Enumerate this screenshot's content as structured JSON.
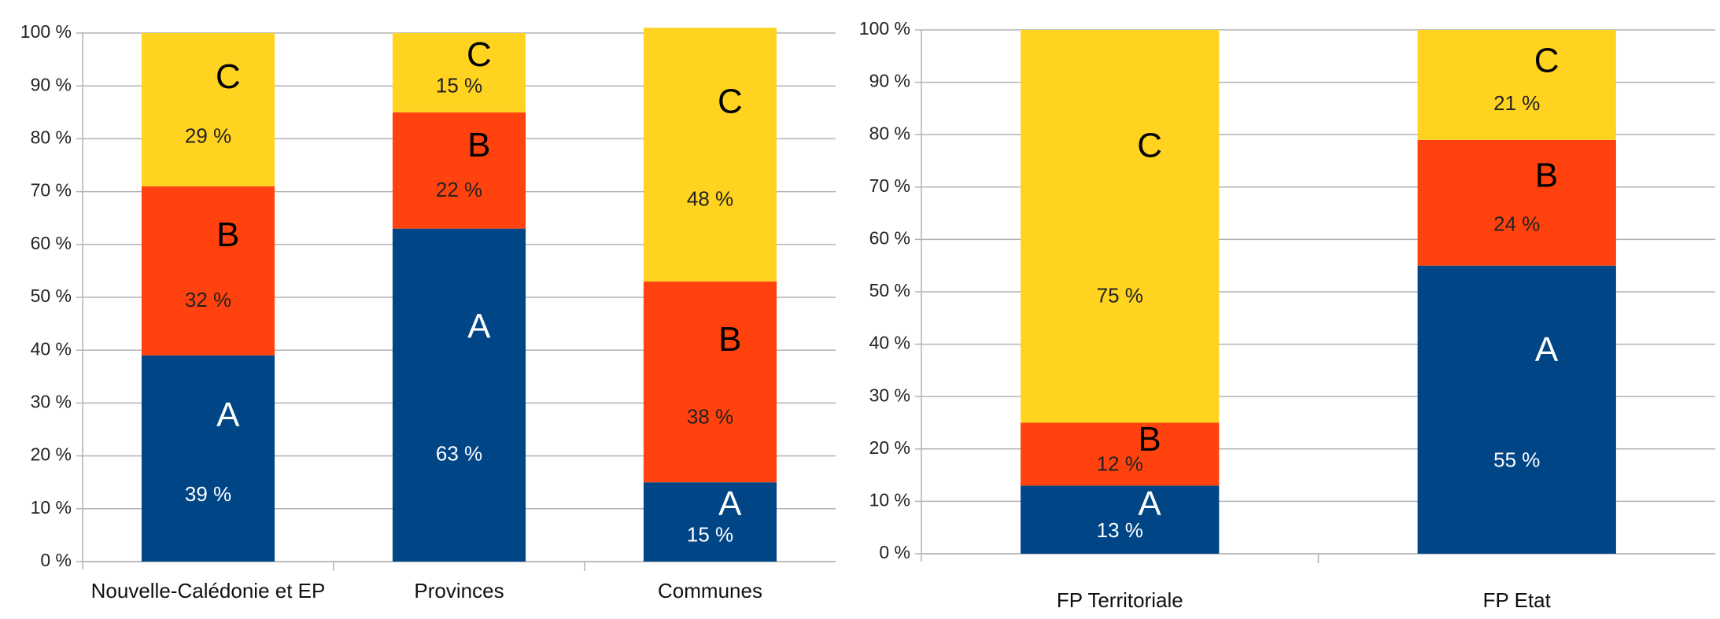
{
  "chart_data": [
    {
      "type": "stacked-bar",
      "categories": [
        "Nouvelle-Calédonie et EP",
        "Provinces",
        "Communes"
      ],
      "series": [
        {
          "name": "A",
          "color": "#004586",
          "values": [
            39,
            63,
            15
          ],
          "value_labels": [
            "39 %",
            "63 %",
            "15 %"
          ]
        },
        {
          "name": "B",
          "color": "#ff420e",
          "values": [
            32,
            22,
            38
          ],
          "value_labels": [
            "32 %",
            "22 %",
            "38 %"
          ]
        },
        {
          "name": "C",
          "color": "#ffd320",
          "values": [
            29,
            15,
            48
          ],
          "value_labels": [
            "29 %",
            "15 %",
            "48 %"
          ]
        }
      ],
      "ylim": [
        0,
        100
      ],
      "yticks": [
        {
          "value": 0,
          "label": "0 %"
        },
        {
          "value": 10,
          "label": "10 %"
        },
        {
          "value": 20,
          "label": "20 %"
        },
        {
          "value": 30,
          "label": "30 %"
        },
        {
          "value": 40,
          "label": "40 %"
        },
        {
          "value": 50,
          "label": "50 %"
        },
        {
          "value": 60,
          "label": "60 %"
        },
        {
          "value": 70,
          "label": "70 %"
        },
        {
          "value": 80,
          "label": "80 %"
        },
        {
          "value": 90,
          "label": "90 %"
        },
        {
          "value": 100,
          "label": "100 %"
        }
      ],
      "grid": true
    },
    {
      "type": "stacked-bar",
      "categories": [
        "FP Territoriale",
        "FP Etat"
      ],
      "series": [
        {
          "name": "A",
          "color": "#004586",
          "values": [
            13,
            55
          ],
          "value_labels": [
            "13 %",
            "55 %"
          ]
        },
        {
          "name": "B",
          "color": "#ff420e",
          "values": [
            12,
            24
          ],
          "value_labels": [
            "12 %",
            "24 %"
          ]
        },
        {
          "name": "C",
          "color": "#ffd320",
          "values": [
            75,
            21
          ],
          "value_labels": [
            "75 %",
            "21 %"
          ]
        }
      ],
      "ylim": [
        0,
        100
      ],
      "yticks": [
        {
          "value": 0,
          "label": "0 %"
        },
        {
          "value": 10,
          "label": "10 %"
        },
        {
          "value": 20,
          "label": "20 %"
        },
        {
          "value": 30,
          "label": "30 %"
        },
        {
          "value": 40,
          "label": "40 %"
        },
        {
          "value": 50,
          "label": "50 %"
        },
        {
          "value": 60,
          "label": "60 %"
        },
        {
          "value": 70,
          "label": "70 %"
        },
        {
          "value": 80,
          "label": "80 %"
        },
        {
          "value": 90,
          "label": "90 %"
        },
        {
          "value": 100,
          "label": "100 %"
        }
      ],
      "grid": true
    }
  ]
}
